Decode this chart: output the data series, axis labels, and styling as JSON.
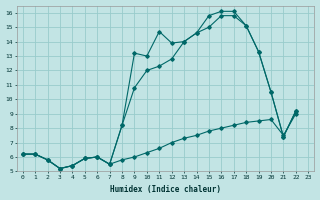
{
  "xlabel": "Humidex (Indice chaleur)",
  "xlim": [
    -0.5,
    23.5
  ],
  "ylim": [
    5,
    16.5
  ],
  "xticks": [
    0,
    1,
    2,
    3,
    4,
    5,
    6,
    7,
    8,
    9,
    10,
    11,
    12,
    13,
    14,
    15,
    16,
    17,
    18,
    19,
    20,
    21,
    22,
    23
  ],
  "yticks": [
    5,
    6,
    7,
    8,
    9,
    10,
    11,
    12,
    13,
    14,
    15,
    16
  ],
  "bg_color": "#c2e4e4",
  "grid_color": "#99cccc",
  "line_color": "#006868",
  "line1_x": [
    0,
    1,
    2,
    3,
    4,
    5,
    6,
    7,
    8,
    9,
    10,
    11,
    12,
    13,
    14,
    15,
    16,
    17,
    18,
    19,
    20,
    21,
    22
  ],
  "line1_y": [
    6.2,
    6.2,
    5.8,
    5.2,
    5.4,
    5.9,
    6.0,
    5.5,
    5.8,
    6.0,
    6.3,
    6.6,
    7.0,
    7.3,
    7.5,
    7.8,
    8.0,
    8.2,
    8.4,
    8.5,
    8.6,
    7.5,
    9.0
  ],
  "line2_x": [
    0,
    1,
    2,
    3,
    4,
    5,
    6,
    7,
    8,
    9,
    10,
    11,
    12,
    13,
    14,
    15,
    16,
    17,
    18,
    19,
    20,
    21,
    22
  ],
  "line2_y": [
    6.2,
    6.2,
    5.8,
    5.2,
    5.4,
    5.9,
    6.0,
    5.5,
    8.2,
    10.8,
    12.0,
    12.3,
    12.8,
    14.0,
    14.6,
    15.0,
    15.8,
    15.8,
    15.1,
    13.3,
    10.5,
    7.4,
    9.2
  ],
  "line3_x": [
    0,
    1,
    2,
    3,
    4,
    5,
    6,
    7,
    8,
    9,
    10,
    11,
    12,
    13,
    14,
    15,
    16,
    17,
    18,
    19,
    20,
    21,
    22
  ],
  "line3_y": [
    6.2,
    6.2,
    5.8,
    5.2,
    5.4,
    5.9,
    6.0,
    5.5,
    8.2,
    13.2,
    13.0,
    14.7,
    13.9,
    14.0,
    14.6,
    15.8,
    16.1,
    16.1,
    15.1,
    13.3,
    10.5,
    7.4,
    9.2
  ]
}
